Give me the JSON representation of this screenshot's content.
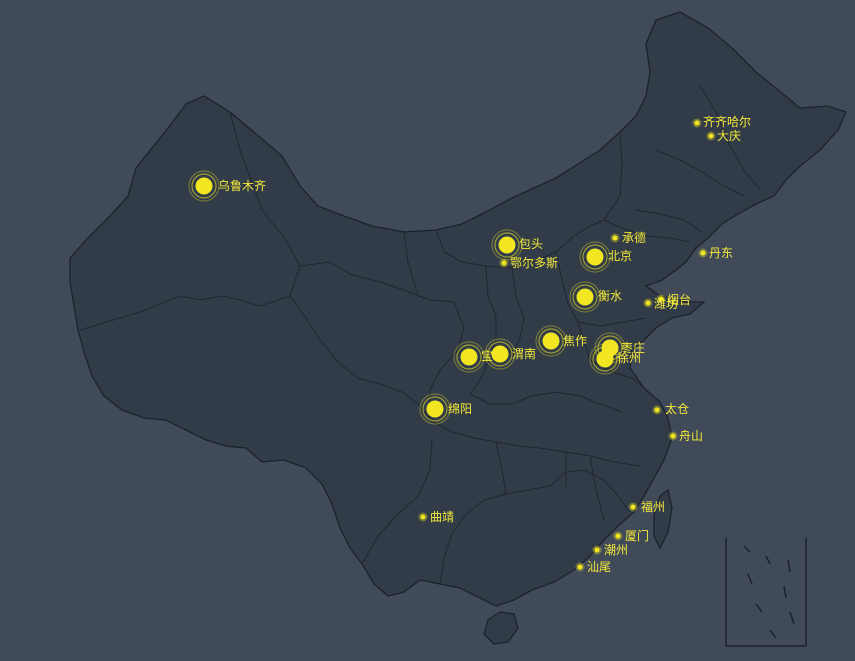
{
  "colors": {
    "background": "#404a59",
    "land": "#323c48",
    "border": "#1c222b",
    "marker": "#f2e622",
    "label": "#f5ea3a"
  },
  "cities": [
    {
      "name": "乌鲁木齐",
      "size": "large"
    },
    {
      "name": "齐齐哈尔",
      "size": "small"
    },
    {
      "name": "大庆",
      "size": "small"
    },
    {
      "name": "承德",
      "size": "small"
    },
    {
      "name": "丹东",
      "size": "small"
    },
    {
      "name": "包头",
      "size": "large"
    },
    {
      "name": "鄂尔多斯",
      "size": "small"
    },
    {
      "name": "北京",
      "size": "large"
    },
    {
      "name": "衡水",
      "size": "large"
    },
    {
      "name": "烟台",
      "size": "small"
    },
    {
      "name": "潍坊",
      "size": "small"
    },
    {
      "name": "焦作",
      "size": "large"
    },
    {
      "name": "枣庄",
      "size": "large"
    },
    {
      "name": "徐州",
      "size": "large"
    },
    {
      "name": "宝鸡",
      "size": "large"
    },
    {
      "name": "渭南",
      "size": "large"
    },
    {
      "name": "绵阳",
      "size": "large"
    },
    {
      "name": "太仓",
      "size": "small"
    },
    {
      "name": "舟山",
      "size": "small"
    },
    {
      "name": "曲靖",
      "size": "small"
    },
    {
      "name": "福州",
      "size": "small"
    },
    {
      "name": "厦门",
      "size": "small"
    },
    {
      "name": "潮州",
      "size": "small"
    },
    {
      "name": "汕尾",
      "size": "small"
    }
  ]
}
